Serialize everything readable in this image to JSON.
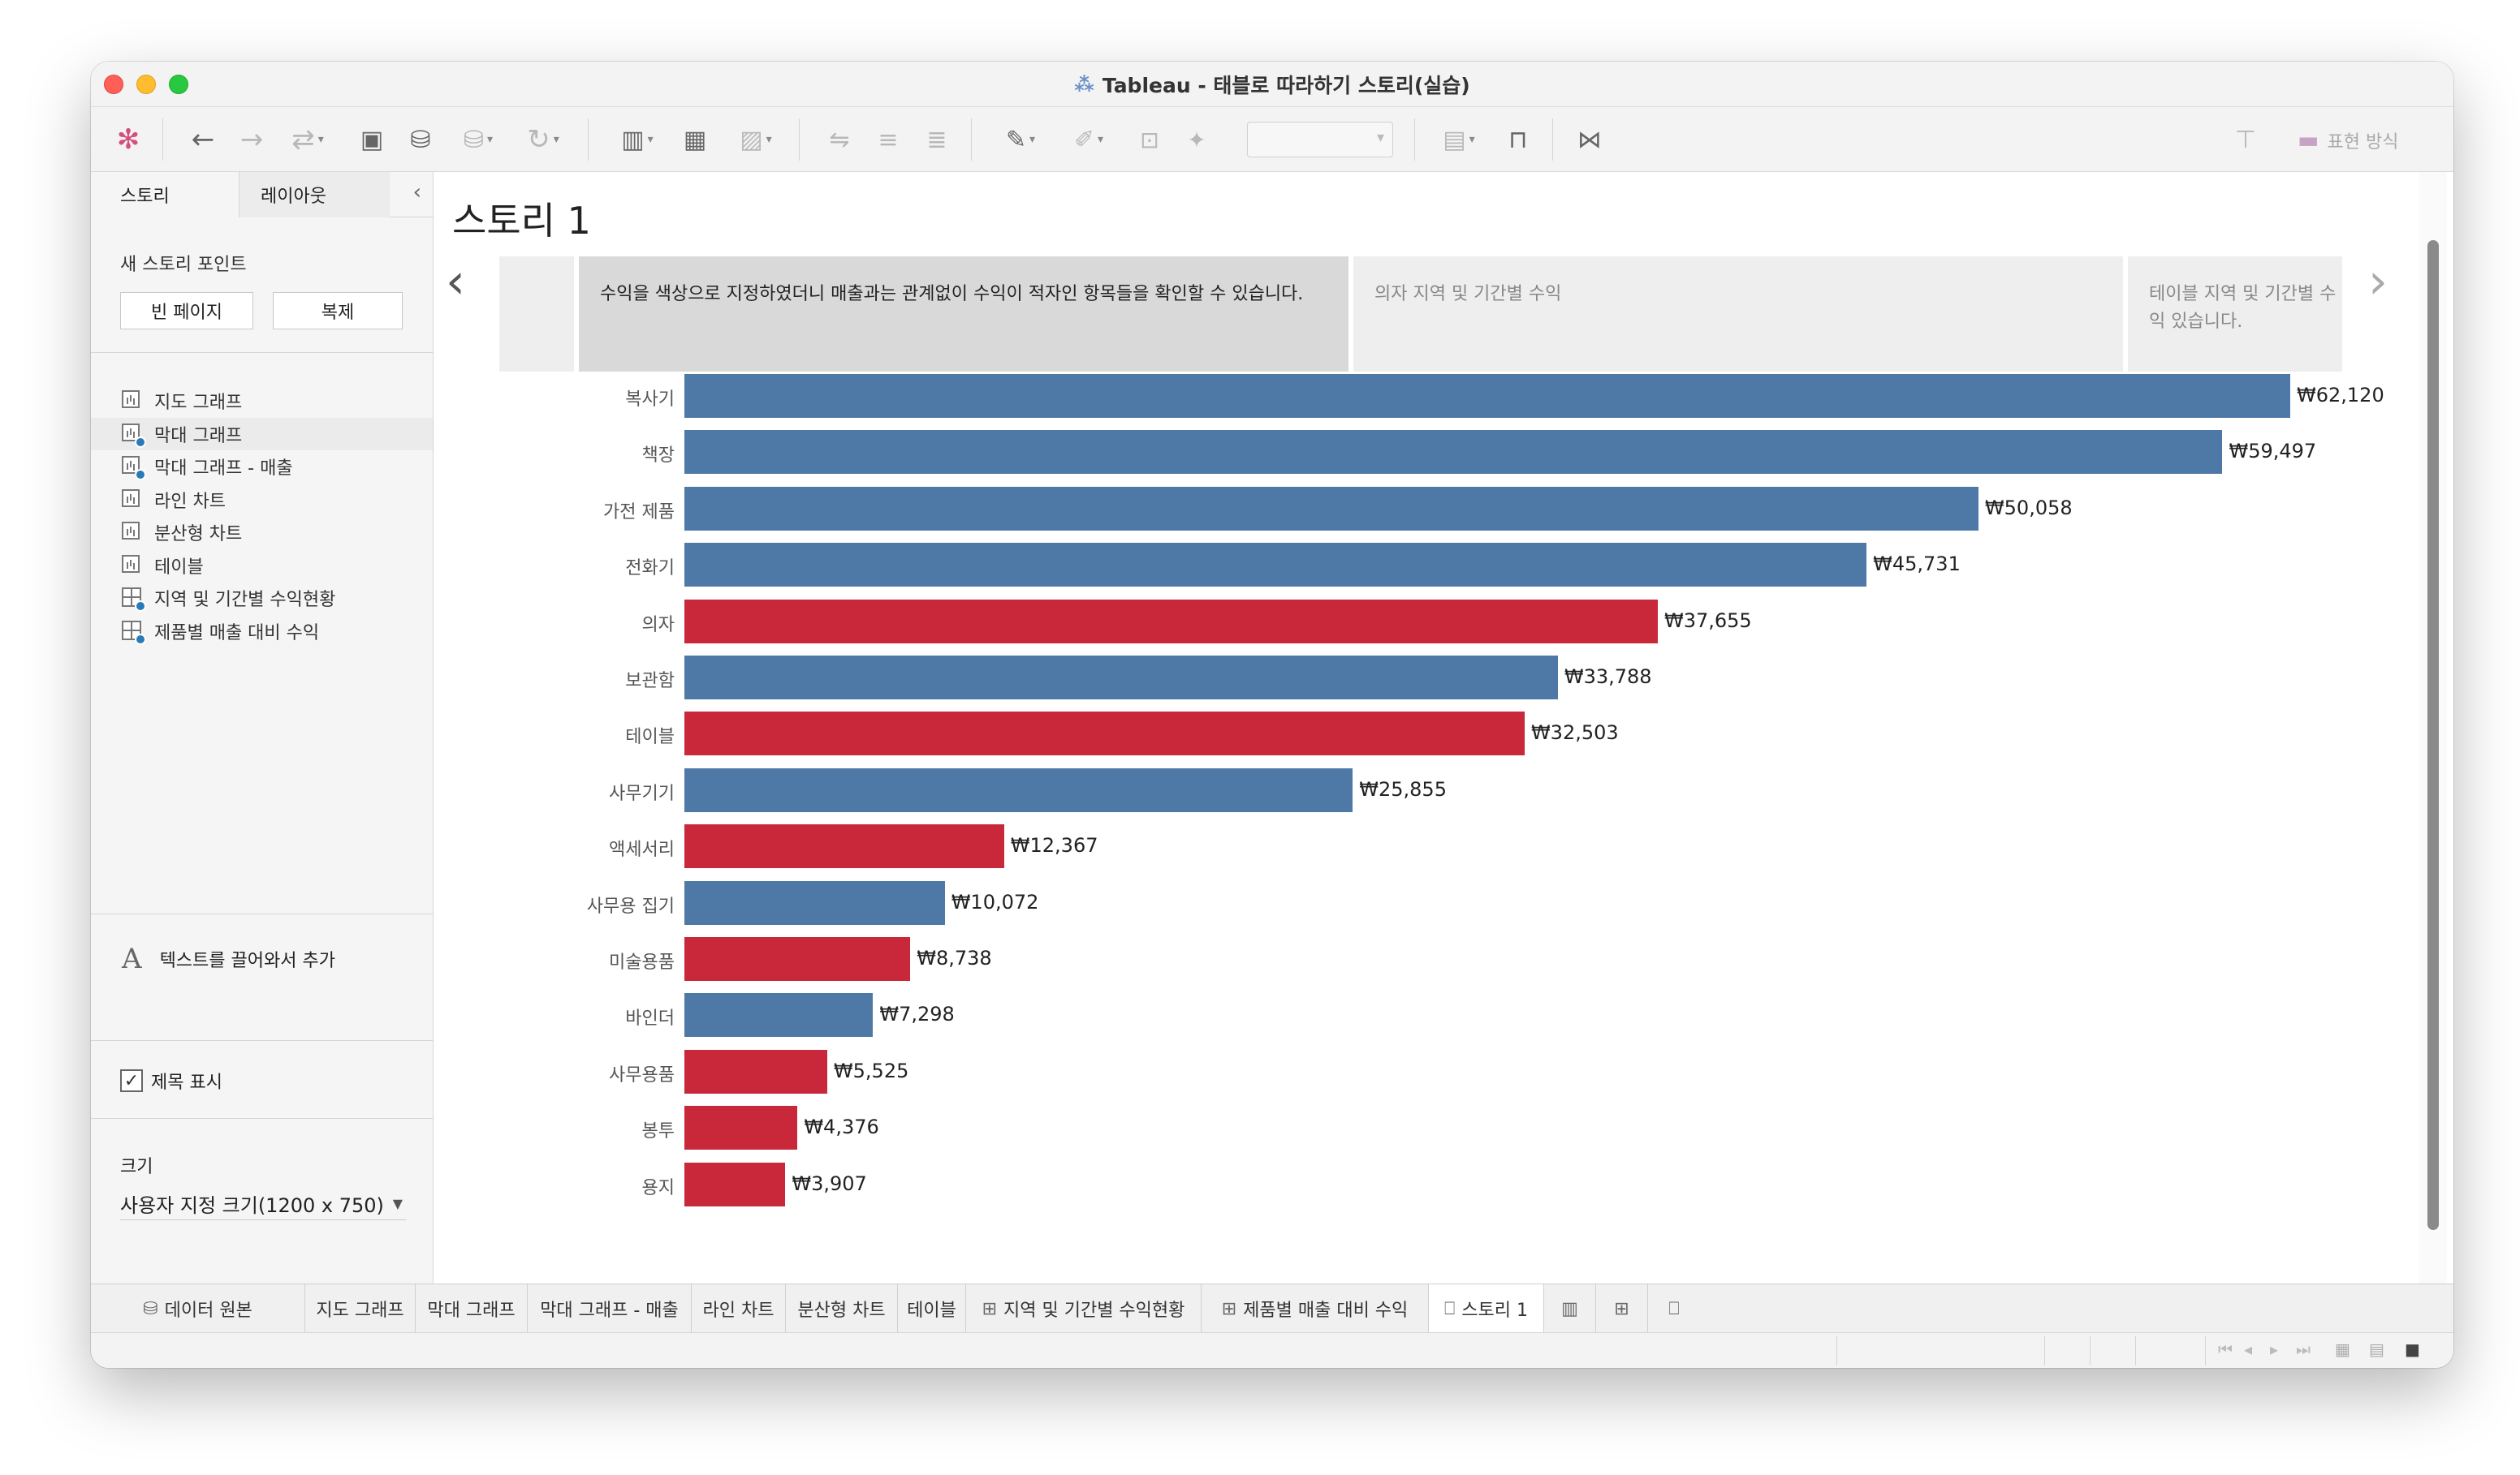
{
  "window": {
    "title": "Tableau - 태블로 따라하기 스토리(실습)"
  },
  "toolbar": {
    "format_label": "표현 방식"
  },
  "sidebar": {
    "tabs": [
      "스토리",
      "레이아웃"
    ],
    "new_point_heading": "새 스토리 포인트",
    "blank_button": "빈 페이지",
    "duplicate_button": "복제",
    "sheets": [
      {
        "label": "지도 그래프",
        "type": "sheet",
        "used": false
      },
      {
        "label": "막대 그래프",
        "type": "sheet",
        "used": true
      },
      {
        "label": "막대 그래프 - 매출",
        "type": "sheet",
        "used": true
      },
      {
        "label": "라인 차트",
        "type": "sheet",
        "used": false
      },
      {
        "label": "분산형 차트",
        "type": "sheet",
        "used": false
      },
      {
        "label": "테이블",
        "type": "sheet",
        "used": false
      },
      {
        "label": "지역 및 기간별 수익현황",
        "type": "dashboard",
        "used": true
      },
      {
        "label": "제품별 매출 대비 수익",
        "type": "dashboard",
        "used": true
      }
    ],
    "drag_text": "텍스트를 끌어와서 추가",
    "show_title_label": "제목 표시",
    "size_label": "크기",
    "size_value": "사용자 지정 크기(1200 x 750)"
  },
  "story": {
    "title": "스토리 1",
    "points": [
      {
        "text": "수익을 색상으로 지정하였더니 매출과는 관계없이 수익이 적자인 항목들을 확인할 수 있습니다.",
        "active": true
      },
      {
        "text": "의자 지역 및 기간별 수익",
        "active": false
      },
      {
        "text": "테이블 지역 및 기간별 수익 있습니다.",
        "active": false
      }
    ]
  },
  "chart_data": {
    "type": "bar",
    "orientation": "horizontal",
    "categories": [
      "복사기",
      "책장",
      "가전 제품",
      "전화기",
      "의자",
      "보관함",
      "테이블",
      "사무기기",
      "액세서리",
      "사무용 집기",
      "미술용품",
      "바인더",
      "사무용품",
      "봉투",
      "용지"
    ],
    "values": [
      62120,
      59497,
      50058,
      45731,
      37655,
      33788,
      32503,
      25855,
      12367,
      10072,
      8738,
      7298,
      5525,
      4376,
      3907
    ],
    "labels": [
      "₩62,120",
      "₩59,497",
      "₩50,058",
      "₩45,731",
      "₩37,655",
      "₩33,788",
      "₩32,503",
      "₩25,855",
      "₩12,367",
      "₩10,072",
      "₩8,738",
      "₩7,298",
      "₩5,525",
      "₩4,376",
      "₩3,907"
    ],
    "negative_profit": [
      false,
      false,
      false,
      false,
      true,
      false,
      true,
      false,
      true,
      false,
      true,
      false,
      true,
      true,
      true
    ],
    "xlim": [
      0,
      62120
    ],
    "colors": {
      "profit": "#4e79a7",
      "loss": "#c8283a"
    },
    "grid": false,
    "legend": "none"
  },
  "bottom_tabs": [
    {
      "label": "데이터 원본",
      "icon": "database-icon"
    },
    {
      "label": "지도 그래프",
      "icon": ""
    },
    {
      "label": "막대 그래프",
      "icon": ""
    },
    {
      "label": "막대 그래프 - 매출",
      "icon": ""
    },
    {
      "label": "라인 차트",
      "icon": ""
    },
    {
      "label": "분산형 차트",
      "icon": ""
    },
    {
      "label": "테이블",
      "icon": ""
    },
    {
      "label": "지역 및 기간별 수익현황",
      "icon": "dashboard-icon"
    },
    {
      "label": "제품별 매출 대비 수익",
      "icon": "dashboard-icon"
    },
    {
      "label": "스토리 1",
      "icon": "story-icon",
      "active": true
    }
  ]
}
